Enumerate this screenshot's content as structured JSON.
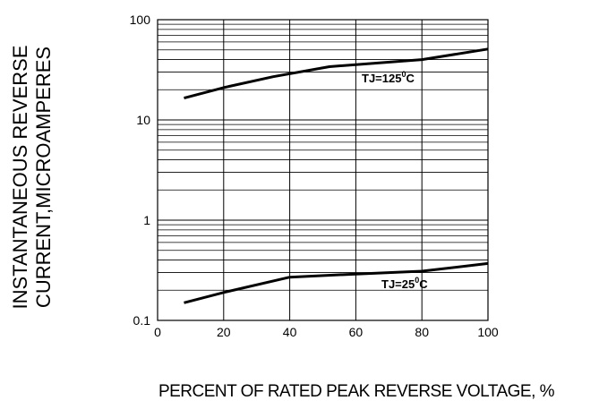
{
  "chart_data": {
    "type": "line",
    "title": "",
    "xlabel": "PERCENT  OF  RATED PEAK REVERSE VOLTAGE, %",
    "ylabel_lines": [
      "INSTANTANEOUS REVERSE",
      "CURRENT,MICROAMPERES"
    ],
    "x_ticks": [
      "0",
      "20",
      "40",
      "60",
      "80",
      "100"
    ],
    "y_ticks": [
      "100",
      "10",
      "1",
      "0.1"
    ],
    "xlim": [
      0,
      100
    ],
    "ylim": [
      0.1,
      100
    ],
    "y_scale": "log",
    "grid": true,
    "series": [
      {
        "name": "TJ=125°C",
        "label_main": "TJ=125",
        "label_sup": "0",
        "label_end": "C",
        "x": [
          8,
          20,
          35,
          52,
          80,
          100
        ],
        "y": [
          16.5,
          21,
          27,
          34,
          40,
          51
        ]
      },
      {
        "name": "TJ=25°C",
        "label_main": "TJ=25",
        "label_sup": "0",
        "label_end": "C",
        "x": [
          8,
          20,
          40,
          60,
          80,
          100
        ],
        "y": [
          0.15,
          0.19,
          0.27,
          0.29,
          0.31,
          0.37
        ]
      }
    ]
  }
}
